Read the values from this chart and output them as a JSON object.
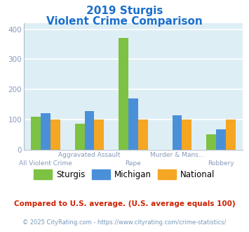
{
  "title_line1": "2019 Sturgis",
  "title_line2": "Violent Crime Comparison",
  "title_color": "#1a6fcc",
  "top_labels": [
    "",
    "Aggravated Assault",
    "",
    "Murder & Mans...",
    ""
  ],
  "bot_labels": [
    "All Violent Crime",
    "",
    "Rape",
    "",
    "Robbery"
  ],
  "sturgis": [
    110,
    87,
    370,
    0,
    50
  ],
  "michigan": [
    120,
    127,
    170,
    113,
    67
  ],
  "national": [
    100,
    100,
    100,
    100,
    100
  ],
  "sturgis_color": "#7dc242",
  "michigan_color": "#4a90d9",
  "national_color": "#f5a623",
  "ylim": [
    0,
    420
  ],
  "yticks": [
    0,
    100,
    200,
    300,
    400
  ],
  "plot_bg": "#deeef5",
  "grid_color": "#ffffff",
  "footnote1": "Compared to U.S. average. (U.S. average equals 100)",
  "footnote2": "© 2025 CityRating.com - https://www.cityrating.com/crime-statistics/",
  "footnote1_color": "#cc2200",
  "footnote2_color": "#7799bb",
  "ytick_color": "#8899bb",
  "xlabel_color": "#8899bb",
  "legend_labels": [
    "Sturgis",
    "Michigan",
    "National"
  ],
  "bar_width": 0.22
}
